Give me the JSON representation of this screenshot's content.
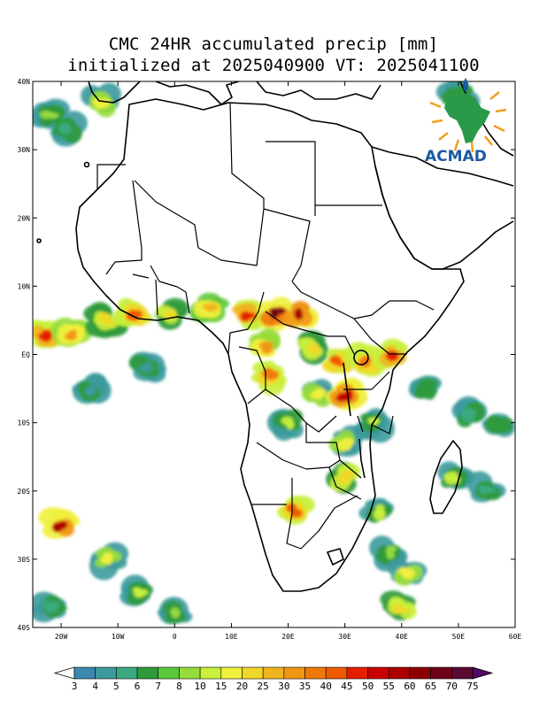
{
  "title": {
    "line1": "CMC 24HR accumulated precip [mm]",
    "line2": "initialized at 2025040900 VT: 2025041100"
  },
  "logo": {
    "text": "ACMAD",
    "icon": "acmad-africa-logo-icon"
  },
  "map": {
    "projection": "lat-lon",
    "lon_range": [
      -25,
      60
    ],
    "lat_range": [
      -40,
      40
    ],
    "lon_ticks": [
      {
        "value": -20,
        "label": "20W"
      },
      {
        "value": -10,
        "label": "10W"
      },
      {
        "value": 0,
        "label": "0"
      },
      {
        "value": 10,
        "label": "10E"
      },
      {
        "value": 20,
        "label": "20E"
      },
      {
        "value": 30,
        "label": "30E"
      },
      {
        "value": 40,
        "label": "40E"
      },
      {
        "value": 50,
        "label": "50E"
      },
      {
        "value": 60,
        "label": "60E"
      }
    ],
    "lat_ticks": [
      {
        "value": 40,
        "label": "40N"
      },
      {
        "value": 30,
        "label": "30N"
      },
      {
        "value": 20,
        "label": "20N"
      },
      {
        "value": 10,
        "label": "10N"
      },
      {
        "value": 0,
        "label": "EQ"
      },
      {
        "value": -10,
        "label": "10S"
      },
      {
        "value": -20,
        "label": "20S"
      },
      {
        "value": -30,
        "label": "30S"
      },
      {
        "value": -40,
        "label": "40S"
      }
    ]
  },
  "colorbar": {
    "levels": [
      "3",
      "4",
      "5",
      "6",
      "7",
      "8",
      "10",
      "15",
      "20",
      "25",
      "30",
      "35",
      "40",
      "45",
      "50",
      "55",
      "60",
      "65",
      "70",
      "75"
    ],
    "colors": [
      "#ffffff",
      "#3a8ab0",
      "#3c9a9c",
      "#3caa80",
      "#2e9a3c",
      "#5cc83c",
      "#96dc3c",
      "#c8f03c",
      "#f0f03c",
      "#f0d828",
      "#f0b41e",
      "#f09614",
      "#f0780a",
      "#f05a00",
      "#e61e00",
      "#c80000",
      "#aa0000",
      "#8c0000",
      "#6e0018",
      "#5a0a32",
      "#500a64"
    ]
  },
  "precip_areas": [
    {
      "lon": -22,
      "lat": 35,
      "mm": 8
    },
    {
      "lon": -19,
      "lat": 33,
      "mm": 5
    },
    {
      "lon": -13,
      "lat": 37,
      "mm": 15
    },
    {
      "lon": 50,
      "lat": 38,
      "mm": 6
    },
    {
      "lon": -23,
      "lat": 3,
      "mm": 45
    },
    {
      "lon": -18,
      "lat": 3,
      "mm": 30
    },
    {
      "lon": -12,
      "lat": 5,
      "mm": 20
    },
    {
      "lon": -7,
      "lat": 6,
      "mm": 40
    },
    {
      "lon": -1,
      "lat": 6,
      "mm": 20
    },
    {
      "lon": 6,
      "lat": 7,
      "mm": 25
    },
    {
      "lon": 13,
      "lat": 6,
      "mm": 45
    },
    {
      "lon": 18,
      "lat": 6,
      "mm": 65
    },
    {
      "lon": 22,
      "lat": 6,
      "mm": 55
    },
    {
      "lon": 16,
      "lat": 1,
      "mm": 30
    },
    {
      "lon": 24,
      "lat": 1,
      "mm": 20
    },
    {
      "lon": 29,
      "lat": -1,
      "mm": 40
    },
    {
      "lon": 34,
      "lat": -1,
      "mm": 35
    },
    {
      "lon": 38,
      "lat": 0,
      "mm": 45
    },
    {
      "lon": 17,
      "lat": -3,
      "mm": 35
    },
    {
      "lon": 25,
      "lat": -6,
      "mm": 15
    },
    {
      "lon": 30,
      "lat": -6,
      "mm": 50
    },
    {
      "lon": 20,
      "lat": -10,
      "mm": 10
    },
    {
      "lon": 30,
      "lat": -13,
      "mm": 15
    },
    {
      "lon": 35,
      "lat": -10,
      "mm": 10
    },
    {
      "lon": 44,
      "lat": -5,
      "mm": 6
    },
    {
      "lon": 52,
      "lat": -9,
      "mm": 5
    },
    {
      "lon": 57,
      "lat": -10,
      "mm": 6
    },
    {
      "lon": 49,
      "lat": -18,
      "mm": 10
    },
    {
      "lon": 30,
      "lat": -18,
      "mm": 20
    },
    {
      "lon": 21,
      "lat": -23,
      "mm": 40
    },
    {
      "lon": 36,
      "lat": -23,
      "mm": 10
    },
    {
      "lon": 38,
      "lat": -29,
      "mm": 8
    },
    {
      "lon": 41,
      "lat": -32,
      "mm": 15
    },
    {
      "lon": 40,
      "lat": -37,
      "mm": 20
    },
    {
      "lon": -20,
      "lat": -25,
      "mm": 55
    },
    {
      "lon": -12,
      "lat": -30,
      "mm": 15
    },
    {
      "lon": -6,
      "lat": -35,
      "mm": 10
    },
    {
      "lon": 0,
      "lat": -38,
      "mm": 8
    },
    {
      "lon": -22,
      "lat": -37,
      "mm": 5
    },
    {
      "lon": -15,
      "lat": -5,
      "mm": 4
    },
    {
      "lon": -5,
      "lat": -2,
      "mm": 4
    },
    {
      "lon": 55,
      "lat": -20,
      "mm": 5
    }
  ]
}
